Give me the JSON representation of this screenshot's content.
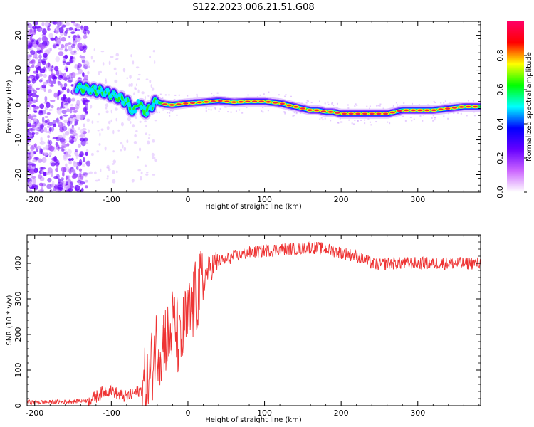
{
  "figure": {
    "title": "S122.2023.006.21.51.G08"
  },
  "chart_data": [
    {
      "type": "heatmap",
      "title": "",
      "xlabel": "Height of straight line (km)",
      "ylabel": "Frequency (Hz)",
      "xlim": [
        -210,
        382
      ],
      "ylim": [
        -25,
        24
      ],
      "xticks": [
        -200,
        -100,
        0,
        100,
        200,
        300
      ],
      "yticks": [
        -20,
        -10,
        0,
        10,
        20
      ],
      "grid": false,
      "colorbar": {
        "label": "Normalized spectral amplitude",
        "range": [
          0.0,
          1.0
        ],
        "ticks": [
          0.0,
          0.2,
          0.4,
          0.6,
          0.8
        ],
        "colormap": [
          "#ffffff",
          "#cc66ff",
          "#6600ff",
          "#0000ff",
          "#00ffff",
          "#00ff00",
          "#ffff00",
          "#ff0000",
          "#ff0066"
        ]
      },
      "ridge": {
        "x": [
          -145,
          -130,
          -115,
          -100,
          -90,
          -80,
          -75,
          -70,
          -65,
          -60,
          -55,
          -50,
          -45,
          -40,
          -35,
          -30,
          -20,
          0,
          20,
          40,
          60,
          80,
          100,
          120,
          140,
          160,
          170,
          180,
          190,
          200,
          220,
          240,
          260,
          280,
          300,
          320,
          340,
          360,
          382
        ],
        "y": [
          5,
          4.5,
          4,
          3,
          2,
          1,
          -1,
          -2,
          1,
          -1,
          -2,
          -1,
          0.5,
          0.8,
          0.5,
          0.2,
          0,
          0.5,
          0.8,
          1.2,
          0.8,
          1,
          1,
          0.5,
          -0.5,
          -1.5,
          -1.5,
          -2,
          -2,
          -2.5,
          -2.5,
          -2.5,
          -2.5,
          -1.5,
          -1.5,
          -1.5,
          -1,
          -0.5,
          -0.5
        ]
      }
    },
    {
      "type": "line",
      "title": "",
      "xlabel": "Height of straight line (km)",
      "ylabel": "SNR (10 * v/v)",
      "xlim": [
        -210,
        382
      ],
      "ylim": [
        0,
        480
      ],
      "xticks": [
        -200,
        -100,
        0,
        100,
        200,
        300
      ],
      "yticks": [
        0,
        100,
        200,
        300,
        400
      ],
      "grid": false,
      "series": [
        {
          "color": "#ee3333",
          "x": [
            -210,
            -180,
            -150,
            -130,
            -120,
            -110,
            -100,
            -90,
            -80,
            -70,
            -60,
            -50,
            -45,
            -40,
            -35,
            -30,
            -25,
            -20,
            -15,
            -10,
            -5,
            0,
            5,
            10,
            15,
            20,
            25,
            30,
            40,
            50,
            60,
            80,
            100,
            120,
            140,
            160,
            180,
            200,
            220,
            240,
            250,
            260,
            280,
            300,
            320,
            340,
            360,
            382
          ],
          "y": [
            10,
            10,
            12,
            15,
            25,
            40,
            45,
            30,
            25,
            35,
            45,
            70,
            140,
            180,
            160,
            200,
            180,
            230,
            210,
            150,
            220,
            240,
            270,
            300,
            320,
            350,
            375,
            390,
            405,
            410,
            420,
            430,
            435,
            440,
            440,
            445,
            440,
            430,
            420,
            400,
            395,
            400,
            400,
            400,
            400,
            400,
            400,
            400
          ]
        }
      ]
    }
  ]
}
